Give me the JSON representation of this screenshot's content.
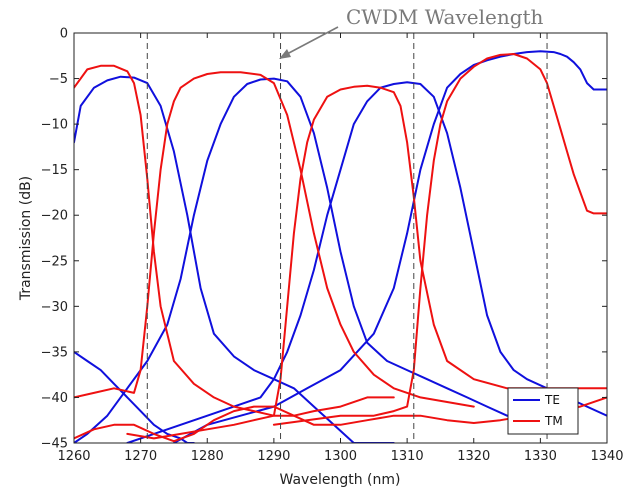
{
  "chart_data": {
    "type": "line",
    "title": "",
    "xlabel": "Wavelength (nm)",
    "ylabel": "Transmission (dB)",
    "xlim": [
      1260,
      1340
    ],
    "ylim": [
      -45,
      0
    ],
    "xticks": [
      1260,
      1270,
      1280,
      1290,
      1300,
      1310,
      1320,
      1330,
      1340
    ],
    "yticks": [
      0,
      -5,
      -10,
      -15,
      -20,
      -25,
      -30,
      -35,
      -40,
      -45
    ],
    "grid": false,
    "legend_position": "bottom-right",
    "annotation": "CWDM Wavelength",
    "cwdm_lines": [
      1271,
      1291,
      1311,
      1331
    ],
    "colors": {
      "TE": "#1010dd",
      "TM": "#ee1111",
      "dashed": "#444444"
    },
    "series": [
      {
        "name": "TE",
        "x": [
          1260,
          1261,
          1263,
          1265,
          1267,
          1269,
          1271,
          1273,
          1275,
          1277,
          1279,
          1281,
          1284,
          1287,
          1290,
          1293,
          1296,
          1299,
          1302,
          1305,
          1308
        ],
        "y": [
          -12,
          -8,
          -6,
          -5.2,
          -4.8,
          -4.9,
          -5.5,
          -8,
          -13,
          -20,
          -28,
          -33,
          -35.5,
          -37,
          -38,
          -39,
          -41,
          -43,
          -45,
          -45,
          -45
        ]
      },
      {
        "name": "TE",
        "x": [
          1260,
          1262,
          1265,
          1268,
          1271,
          1274,
          1276,
          1278,
          1280,
          1282,
          1284,
          1286,
          1288,
          1290,
          1292,
          1294,
          1296,
          1298,
          1300,
          1302,
          1304,
          1307,
          1310,
          1313,
          1316,
          1319,
          1322,
          1325
        ],
        "y": [
          -45,
          -44,
          -42,
          -39,
          -36,
          -32,
          -27,
          -20,
          -14,
          -10,
          -7,
          -5.6,
          -5.1,
          -5,
          -5.3,
          -7,
          -11,
          -17,
          -24,
          -30,
          -34,
          -36,
          -37,
          -38,
          -39,
          -40,
          -41,
          -42
        ]
      },
      {
        "name": "TE",
        "x": [
          1268,
          1272,
          1276,
          1280,
          1284,
          1288,
          1290,
          1292,
          1294,
          1296,
          1298,
          1300,
          1302,
          1304,
          1306,
          1308,
          1310,
          1312,
          1314,
          1316,
          1318,
          1320,
          1322,
          1324,
          1326,
          1328,
          1331,
          1334,
          1337,
          1340
        ],
        "y": [
          -45,
          -44,
          -43,
          -42,
          -41,
          -40,
          -38,
          -35,
          -31,
          -26,
          -20,
          -15,
          -10,
          -7.5,
          -6,
          -5.6,
          -5.4,
          -5.6,
          -7,
          -11,
          -17,
          -24,
          -31,
          -35,
          -37,
          -38,
          -39,
          -40,
          -41,
          -42
        ]
      },
      {
        "name": "TE",
        "x": [
          1275,
          1280,
          1285,
          1290,
          1295,
          1300,
          1305,
          1308,
          1310,
          1312,
          1314,
          1316,
          1318,
          1320,
          1322,
          1324,
          1326,
          1328,
          1330,
          1332,
          1333,
          1334,
          1335,
          1336,
          1337,
          1338,
          1340
        ],
        "y": [
          -45,
          -43,
          -42,
          -41,
          -39,
          -37,
          -33,
          -28,
          -22,
          -15,
          -10,
          -6,
          -4.5,
          -3.5,
          -3,
          -2.6,
          -2.3,
          -2.1,
          -2,
          -2.1,
          -2.3,
          -2.6,
          -3.2,
          -4,
          -5.5,
          -6.2,
          -6.2
        ]
      },
      {
        "name": "TE",
        "x": [
          1260,
          1262,
          1264,
          1266,
          1268,
          1270,
          1272,
          1274,
          1276,
          1277,
          1278
        ],
        "y": [
          -35,
          -36,
          -37,
          -38.5,
          -40,
          -41.5,
          -43,
          -44,
          -44.5,
          -45,
          -45
        ]
      },
      {
        "name": "TM",
        "x": [
          1260,
          1262,
          1264,
          1266,
          1268,
          1269,
          1270,
          1271,
          1272,
          1273,
          1275,
          1278,
          1281,
          1284,
          1287,
          1290,
          1293,
          1296,
          1300,
          1304,
          1308
        ],
        "y": [
          -6,
          -4,
          -3.6,
          -3.6,
          -4.2,
          -5.5,
          -9,
          -16,
          -24,
          -30,
          -36,
          -38.5,
          -40,
          -41,
          -41.5,
          -42,
          -42,
          -41.5,
          -41,
          -40,
          -40
        ]
      },
      {
        "name": "TM",
        "x": [
          1260,
          1263,
          1266,
          1269,
          1270,
          1271,
          1272,
          1273,
          1274,
          1275,
          1276,
          1278,
          1280,
          1282,
          1285,
          1288,
          1290,
          1292,
          1294,
          1296,
          1298,
          1300,
          1302,
          1305,
          1308,
          1312,
          1316,
          1320
        ],
        "y": [
          -40,
          -39.5,
          -39,
          -39.5,
          -37,
          -30,
          -22,
          -15,
          -10,
          -7.5,
          -6,
          -5,
          -4.5,
          -4.3,
          -4.3,
          -4.6,
          -5.5,
          -9,
          -15,
          -22,
          -28,
          -32,
          -35,
          -37.5,
          -39,
          -40,
          -40.5,
          -41
        ]
      },
      {
        "name": "TM",
        "x": [
          1268,
          1272,
          1276,
          1280,
          1284,
          1287,
          1290,
          1291,
          1292,
          1293,
          1294,
          1295,
          1296,
          1298,
          1300,
          1302,
          1304,
          1306,
          1308,
          1309,
          1310,
          1311,
          1312,
          1314,
          1316,
          1320,
          1325,
          1330,
          1335,
          1340
        ],
        "y": [
          -44,
          -44.5,
          -44,
          -43.5,
          -43,
          -42.5,
          -42,
          -38,
          -30,
          -22,
          -16,
          -12,
          -9.5,
          -7,
          -6.2,
          -5.9,
          -5.8,
          -6,
          -6.5,
          -8,
          -12,
          -18,
          -25,
          -32,
          -36,
          -38,
          -39,
          -39,
          -39,
          -39
        ]
      },
      {
        "name": "TM",
        "x": [
          1290,
          1295,
          1300,
          1305,
          1308,
          1310,
          1311,
          1312,
          1313,
          1314,
          1315,
          1316,
          1318,
          1320,
          1322,
          1324,
          1326,
          1328,
          1330,
          1331,
          1332,
          1333,
          1334,
          1335,
          1336,
          1337,
          1338,
          1340
        ],
        "y": [
          -43,
          -42.5,
          -42,
          -42,
          -41.5,
          -41,
          -37,
          -28,
          -20,
          -14,
          -10,
          -7.5,
          -5,
          -3.7,
          -2.8,
          -2.4,
          -2.3,
          -2.8,
          -4,
          -5.5,
          -8,
          -10.5,
          -13,
          -15.5,
          -17.5,
          -19.5,
          -19.8,
          -19.8
        ]
      },
      {
        "name": "TM",
        "x": [
          1260,
          1263,
          1266,
          1269,
          1272,
          1275,
          1278,
          1281,
          1284,
          1287,
          1290,
          1293,
          1296,
          1300,
          1304,
          1308,
          1312,
          1316,
          1320,
          1324,
          1328,
          1332,
          1336,
          1340
        ],
        "y": [
          -44.5,
          -43.5,
          -43,
          -43,
          -44,
          -44.8,
          -44,
          -42.5,
          -41.5,
          -41,
          -41,
          -42,
          -43,
          -43,
          -42.5,
          -42,
          -42,
          -42.5,
          -42.8,
          -42.5,
          -42,
          -41.5,
          -41,
          -40
        ]
      }
    ]
  }
}
